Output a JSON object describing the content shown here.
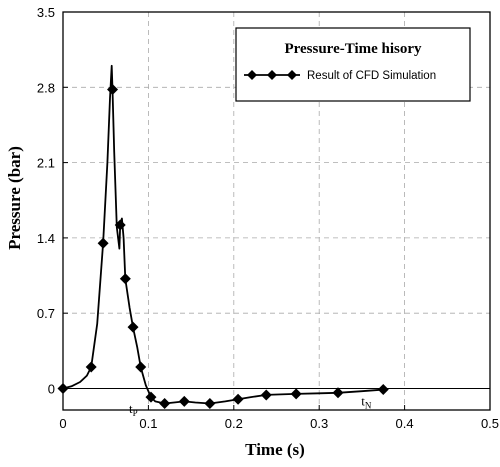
{
  "chart_data": {
    "type": "line",
    "title": "Pressure-Time hisory",
    "xlabel": "Time (s)",
    "ylabel": "Pressure (bar)",
    "xlim": [
      0,
      0.5
    ],
    "ylim": [
      -0.2,
      3.5
    ],
    "xticks": [
      0,
      0.1,
      0.2,
      0.3,
      0.4,
      0.5
    ],
    "yticks": [
      0,
      0.7,
      1.4,
      2.1,
      2.8,
      3.5
    ],
    "xtick_labels": [
      "0",
      "0.1",
      "0.2",
      "0.3",
      "0.4",
      "0.5"
    ],
    "ytick_labels": [
      "0",
      "0.7",
      "1.4",
      "2.1",
      "2.8",
      "3.5"
    ],
    "grid": true,
    "legend_position": "top-right",
    "series": [
      {
        "name": "Result of CFD Simulation",
        "marker": "diamond",
        "color": "#000000",
        "x": [
          0,
          0.033,
          0.047,
          0.058,
          0.067,
          0.073,
          0.082,
          0.091,
          0.103,
          0.119,
          0.142,
          0.172,
          0.205,
          0.238,
          0.273,
          0.322,
          0.375
        ],
        "y": [
          0,
          0.2,
          1.35,
          2.78,
          1.52,
          1.02,
          0.57,
          0.2,
          -0.08,
          -0.14,
          -0.12,
          -0.14,
          -0.1,
          -0.06,
          -0.05,
          -0.04,
          -0.01
        ]
      }
    ],
    "curve": {
      "x": [
        0,
        0.01,
        0.02,
        0.028,
        0.033,
        0.04,
        0.047,
        0.052,
        0.055,
        0.057,
        0.058,
        0.06,
        0.063,
        0.066,
        0.067,
        0.069,
        0.071,
        0.073,
        0.078,
        0.082,
        0.087,
        0.091,
        0.097,
        0.103,
        0.108,
        0.119,
        0.13,
        0.142,
        0.155,
        0.172,
        0.19,
        0.205,
        0.22,
        0.238,
        0.255,
        0.273,
        0.3,
        0.322,
        0.35,
        0.375
      ],
      "y": [
        0,
        0.02,
        0.06,
        0.12,
        0.2,
        0.6,
        1.35,
        2.1,
        2.7,
        3.0,
        2.78,
        2.2,
        1.5,
        1.3,
        1.52,
        1.58,
        1.4,
        1.02,
        0.75,
        0.57,
        0.38,
        0.2,
        0.03,
        -0.08,
        -0.12,
        -0.14,
        -0.13,
        -0.12,
        -0.13,
        -0.14,
        -0.12,
        -0.1,
        -0.08,
        -0.06,
        -0.055,
        -0.05,
        -0.045,
        -0.04,
        -0.025,
        -0.01
      ]
    },
    "annotations": [
      {
        "label": "t",
        "sub": "P",
        "x": 0.103,
        "y": -0.08
      },
      {
        "label": "t",
        "sub": "N",
        "x": 0.375,
        "y": -0.01
      }
    ]
  }
}
